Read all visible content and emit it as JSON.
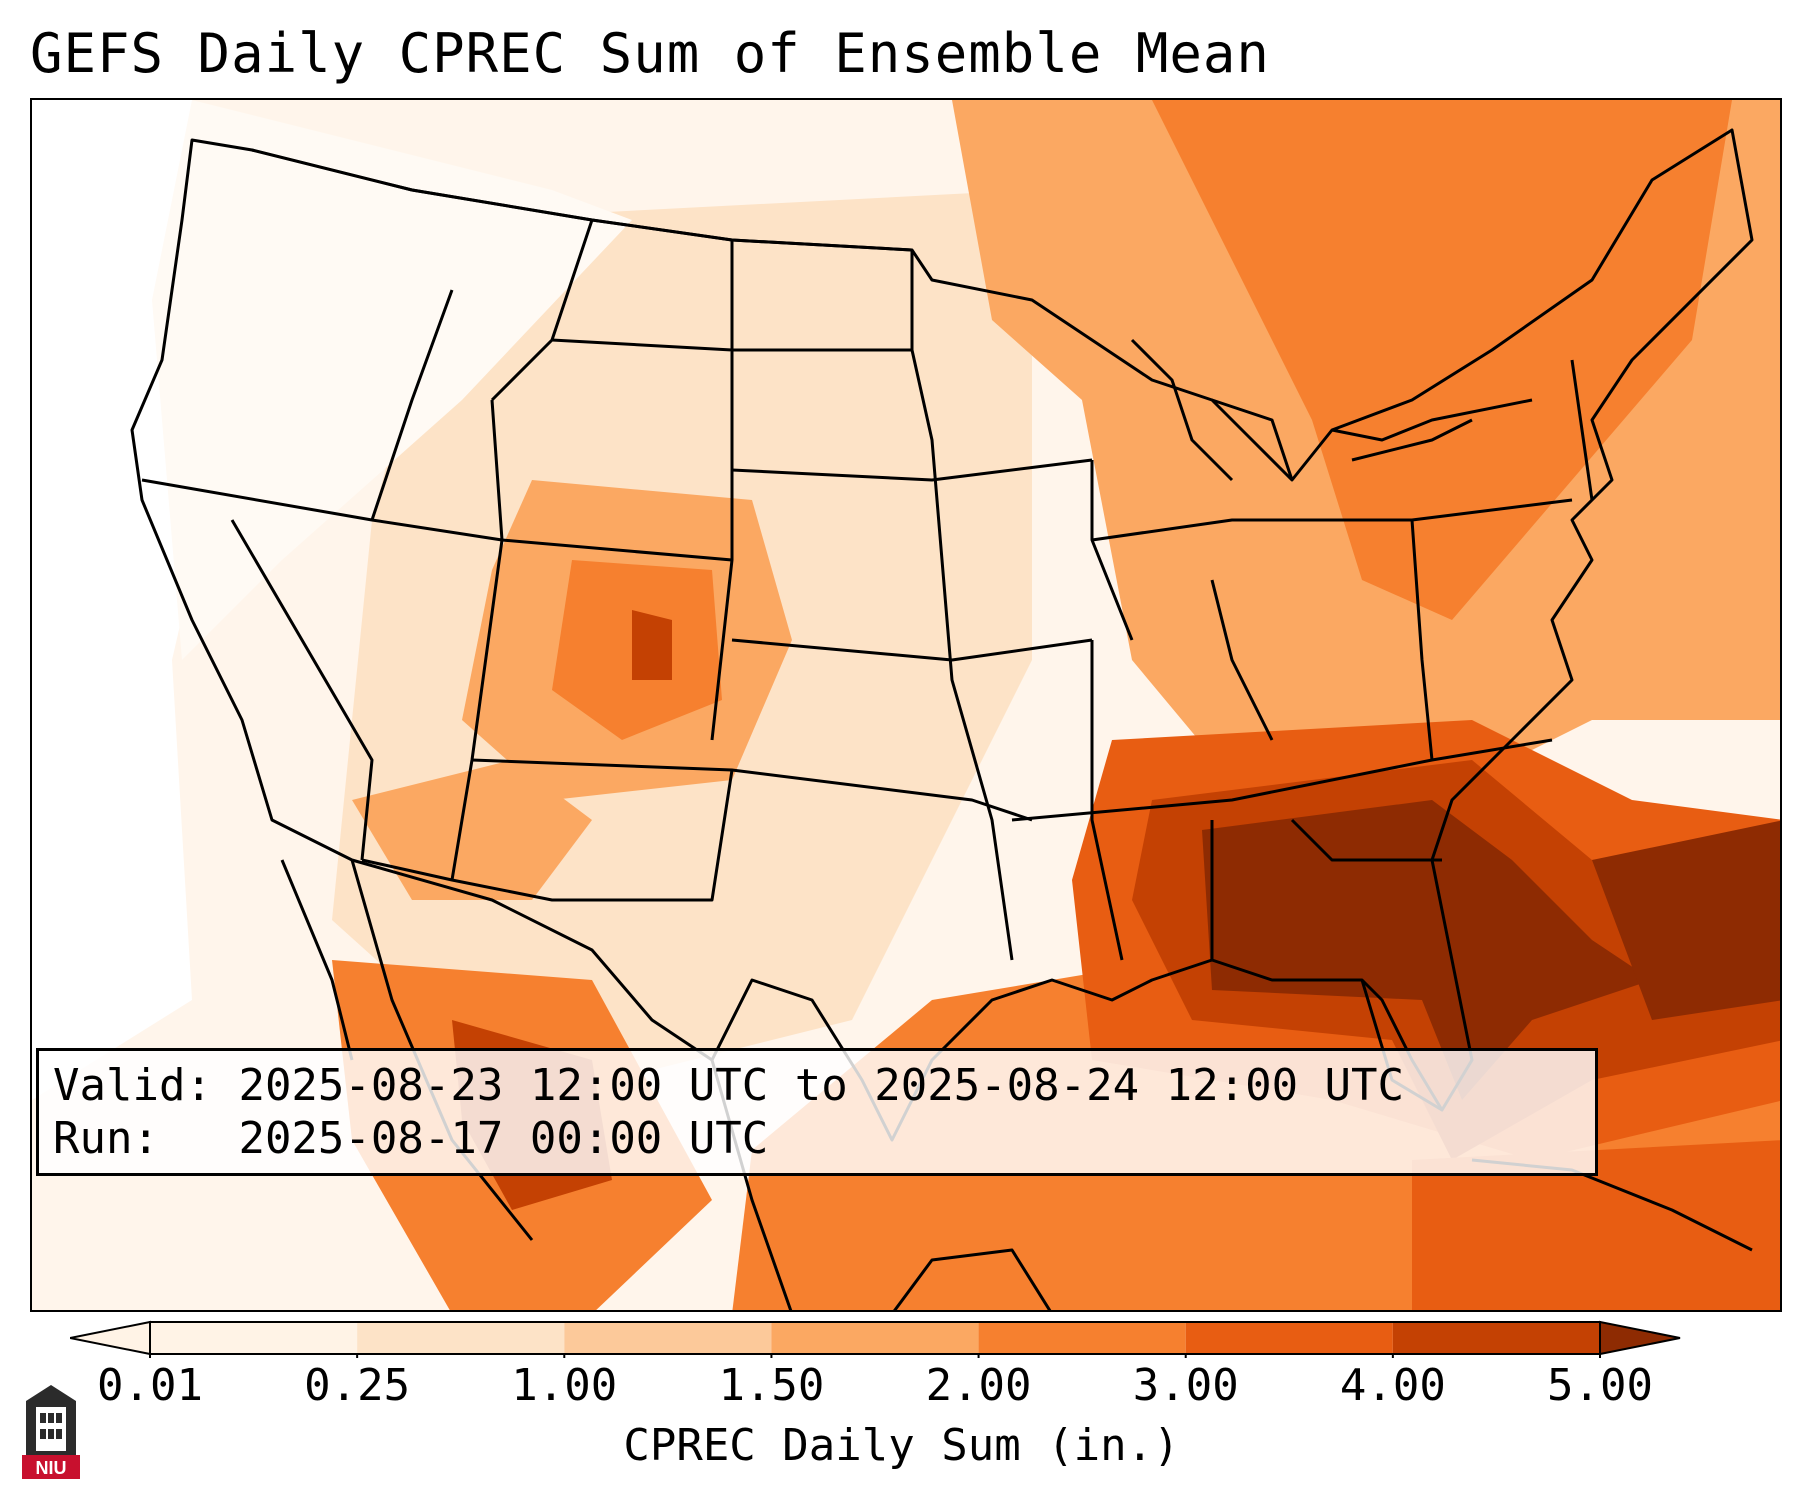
{
  "title": "GEFS Daily CPREC Sum of Ensemble Mean",
  "info": {
    "valid_label": "Valid:",
    "valid_value": "2025-08-23 12:00 UTC to 2025-08-24 12:00 UTC",
    "run_label": "Run:",
    "run_value": "2025-08-17 00:00 UTC"
  },
  "colorbar": {
    "label": "CPREC Daily Sum (in.)",
    "ticks": [
      "0.01",
      "0.25",
      "1.00",
      "1.50",
      "2.00",
      "3.00",
      "4.00",
      "5.00"
    ],
    "colors": [
      "#fff3e6",
      "#fde3c7",
      "#fcc99a",
      "#fba862",
      "#f6802f",
      "#e85d12",
      "#c44103",
      "#8e2b02"
    ],
    "extend": "both"
  },
  "logo": {
    "text": "NIU",
    "colors": {
      "red": "#c8102e",
      "dark": "#2b2b2b"
    }
  }
}
